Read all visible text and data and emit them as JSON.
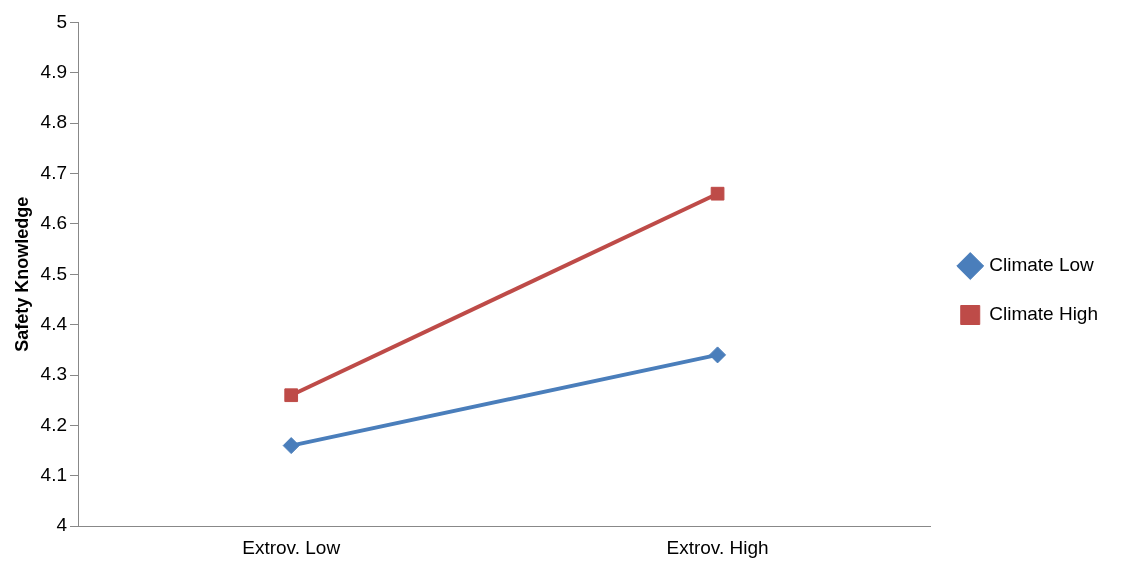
{
  "chart_data": {
    "type": "line",
    "ylabel": "Safety Knowledge",
    "categories": [
      "Extrov. Low",
      "Extrov. High"
    ],
    "series": [
      {
        "name": "Climate Low",
        "color": "#4a7ebb",
        "values": [
          4.16,
          4.34
        ],
        "marker": "diamond"
      },
      {
        "name": "Climate High",
        "color": "#be4b48",
        "values": [
          4.26,
          4.66
        ],
        "marker": "square"
      }
    ],
    "ylim": [
      4,
      5
    ],
    "yticks": [
      4,
      4.1,
      4.2,
      4.3,
      4.4,
      4.5,
      4.6,
      4.7,
      4.8,
      4.9,
      5
    ],
    "grid": false,
    "legend": "right",
    "line_style": "solid"
  }
}
